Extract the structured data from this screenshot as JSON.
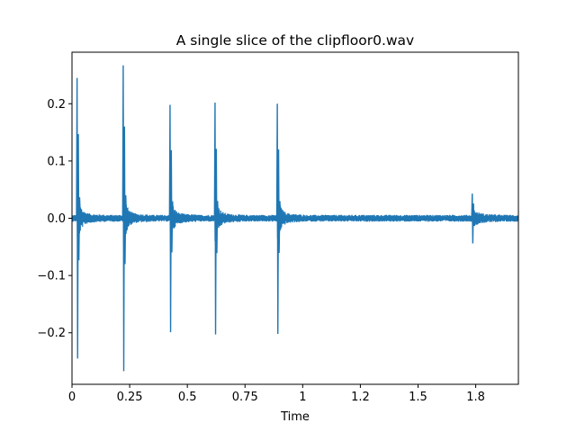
{
  "chart_data": {
    "type": "line",
    "title": "A single slice of the clipfloor0.wav",
    "xlabel": "Time",
    "ylabel": "",
    "xlim": [
      0,
      1.935
    ],
    "ylim": [
      -0.29,
      0.29
    ],
    "grid": false,
    "legend": "none",
    "x_ticks": [
      {
        "value": 0,
        "label": "0"
      },
      {
        "value": 0.25,
        "label": "0.25"
      },
      {
        "value": 0.5,
        "label": "0.5"
      },
      {
        "value": 0.75,
        "label": "0.75"
      },
      {
        "value": 1.0,
        "label": "1"
      },
      {
        "value": 1.25,
        "label": "1.2"
      },
      {
        "value": 1.5,
        "label": "1.5"
      },
      {
        "value": 1.75,
        "label": "1.8"
      }
    ],
    "y_ticks": [
      {
        "value": 0.2,
        "label": "0.2"
      },
      {
        "value": 0.1,
        "label": "0.1"
      },
      {
        "value": 0.0,
        "label": "0.0"
      },
      {
        "value": -0.1,
        "label": "−0.1"
      },
      {
        "value": -0.2,
        "label": "−0.2"
      }
    ],
    "series": [
      {
        "color": "#1f77b4",
        "noise_amplitude": 0.006,
        "transients": [
          {
            "t": 0.022,
            "peak": 0.245,
            "trough": -0.245
          },
          {
            "t": 0.222,
            "peak": 0.267,
            "trough": -0.267
          },
          {
            "t": 0.425,
            "peak": 0.198,
            "trough": -0.199
          },
          {
            "t": 0.62,
            "peak": 0.202,
            "trough": -0.203
          },
          {
            "t": 0.89,
            "peak": 0.2,
            "trough": -0.202
          },
          {
            "t": 1.735,
            "peak": 0.043,
            "trough": -0.044
          }
        ]
      }
    ]
  }
}
